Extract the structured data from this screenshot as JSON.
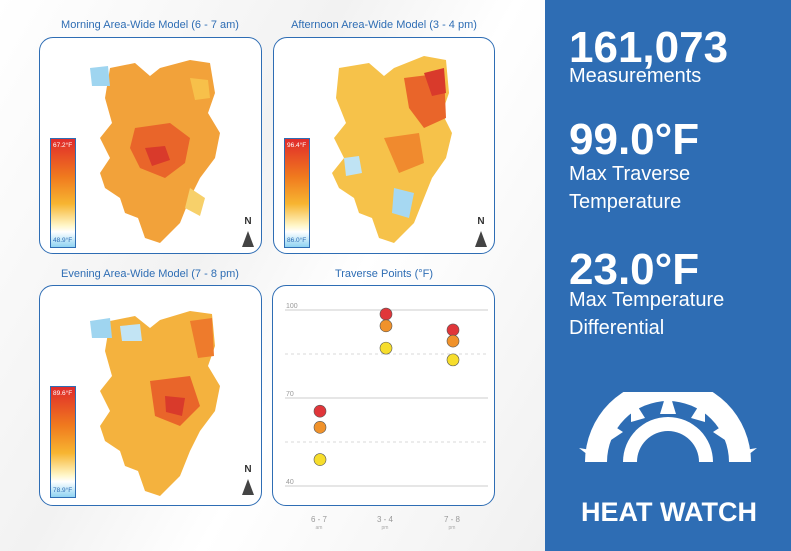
{
  "panels": {
    "morning": {
      "title": "Morning Area-Wide Model (6 - 7 am)",
      "legend_max": "67.2°F",
      "legend_min": "48.9°F",
      "north": "N"
    },
    "afternoon": {
      "title": "Afternoon Area-Wide Model (3 - 4 pm)",
      "legend_max": "96.4°F",
      "legend_min": "86.0°F",
      "north": "N"
    },
    "evening": {
      "title": "Evening Area-Wide Model (7 - 8 pm)",
      "legend_max": "89.6°F",
      "legend_min": "78.9°F",
      "north": "N"
    }
  },
  "colors": {
    "accent": "#2e6db4",
    "hot": "#e0363a",
    "warm": "#f0922b",
    "mild": "#f6dd2c"
  },
  "chart_data": {
    "type": "scatter",
    "title": "Traverse Points (°F)",
    "categories": [
      "6 - 7",
      "3 - 4",
      "7 - 8"
    ],
    "category_sub": [
      "am",
      "pm",
      "pm"
    ],
    "yticks": [
      "100",
      "70",
      "40"
    ],
    "ylim": [
      40,
      100
    ],
    "grid": true,
    "series": [
      {
        "values": [
          65.5,
          98.6,
          93.2
        ],
        "color": "#e0363a"
      },
      {
        "values": [
          60.0,
          94.6,
          89.4
        ],
        "color": "#f0922b"
      },
      {
        "values": [
          49.0,
          87.0,
          83.0
        ],
        "color": "#f6dd2c"
      }
    ]
  },
  "stats": [
    {
      "value": "161,073",
      "label_line1": "Measurements",
      "label_line2": ""
    },
    {
      "value": "99.0°F",
      "label_line1": "Max Traverse",
      "label_line2": "Temperature"
    },
    {
      "value": "23.0°F",
      "label_line1": "Max Temperature",
      "label_line2": "Differential"
    }
  ],
  "brand": {
    "name": "HEAT WATCH",
    "icon": "sun-rays-icon"
  }
}
